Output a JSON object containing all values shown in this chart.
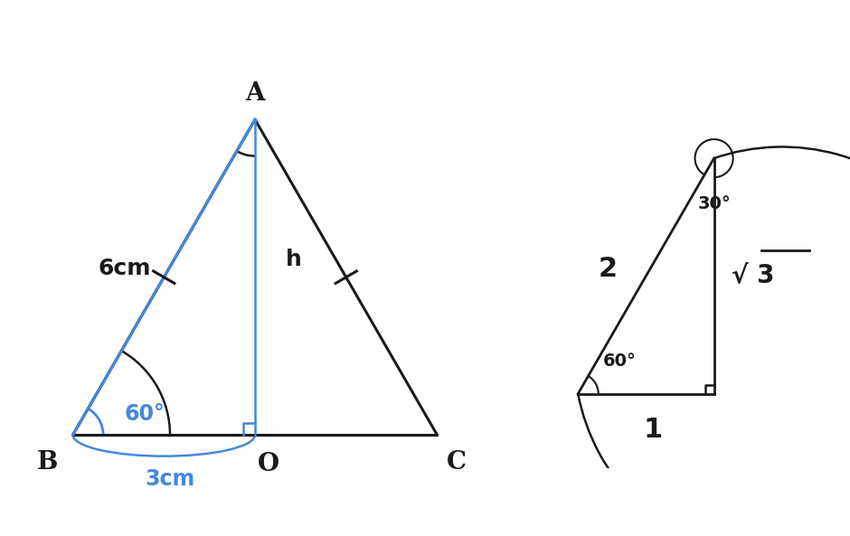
{
  "bg_color": "#ffffff",
  "right_panel_color": "#e8e8e8",
  "black": "#1a1a1a",
  "blue": "#4488dd",
  "left": {
    "B": [
      0,
      0
    ],
    "C": [
      6,
      0
    ],
    "A": [
      3,
      5.196
    ],
    "O": [
      3,
      0
    ],
    "label_A": "A",
    "label_B": "B",
    "label_C": "C",
    "label_O": "O",
    "label_6cm": "6cm",
    "label_h": "h",
    "label_60": "60°",
    "label_3cm": "3cm"
  },
  "right": {
    "BL": [
      0,
      0
    ],
    "BR": [
      1,
      0
    ],
    "TR": [
      1,
      1.732
    ],
    "label_2": "2",
    "label_sqrt3": "√ 3",
    "label_1": "1",
    "label_60": "60°",
    "label_30": "30°"
  }
}
